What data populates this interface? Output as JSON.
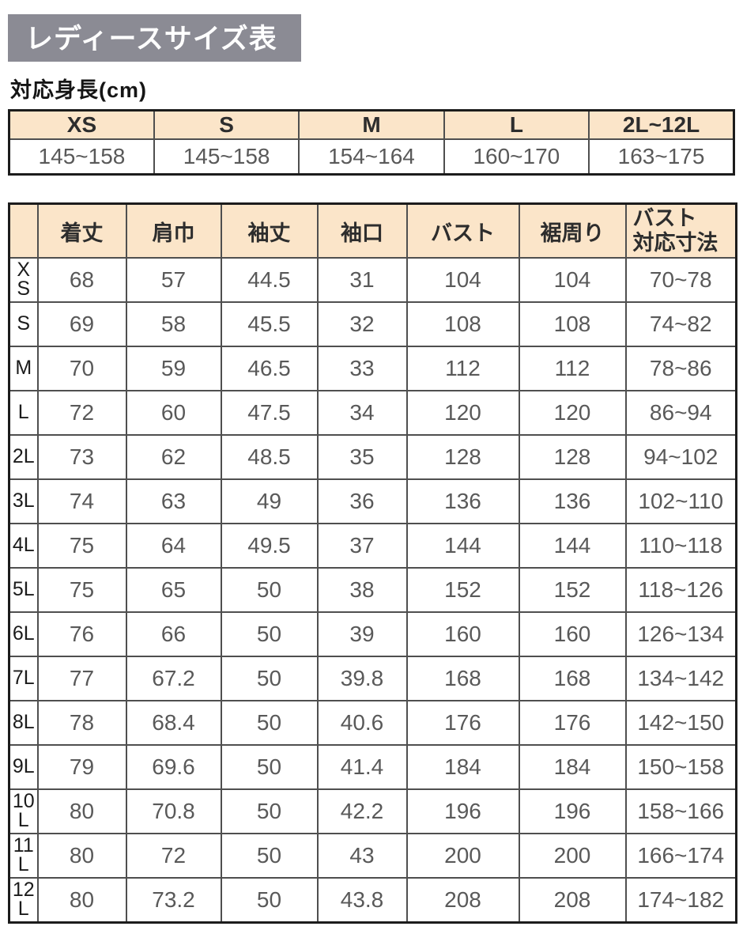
{
  "page": {
    "title": "レディースサイズ表",
    "subtitle": "対応身長(cm)"
  },
  "colors": {
    "title_bg": "#8b8b94",
    "title_text": "#ffffff",
    "header_bg": "#fbe5c9",
    "border_outer": "#1c1c1c",
    "border_inner": "#4f4f4f",
    "header_text": "#2d2d2d",
    "value_text": "#595959"
  },
  "height_table": {
    "columns": [
      "XS",
      "S",
      "M",
      "L",
      "2L~12L"
    ],
    "values": [
      "145~158",
      "145~158",
      "154~164",
      "160~170",
      "163~175"
    ]
  },
  "size_table": {
    "headers": [
      "着丈",
      "肩巾",
      "袖丈",
      "袖口",
      "バスト",
      "裾周り",
      "バスト\n対応寸法"
    ],
    "rows": [
      {
        "size": "XS",
        "values": [
          "68",
          "57",
          "44.5",
          "31",
          "104",
          "104",
          "70~78"
        ]
      },
      {
        "size": "S",
        "values": [
          "69",
          "58",
          "45.5",
          "32",
          "108",
          "108",
          "74~82"
        ]
      },
      {
        "size": "M",
        "values": [
          "70",
          "59",
          "46.5",
          "33",
          "112",
          "112",
          "78~86"
        ]
      },
      {
        "size": "L",
        "values": [
          "72",
          "60",
          "47.5",
          "34",
          "120",
          "120",
          "86~94"
        ]
      },
      {
        "size": "2L",
        "values": [
          "73",
          "62",
          "48.5",
          "35",
          "128",
          "128",
          "94~102"
        ]
      },
      {
        "size": "3L",
        "values": [
          "74",
          "63",
          "49",
          "36",
          "136",
          "136",
          "102~110"
        ]
      },
      {
        "size": "4L",
        "values": [
          "75",
          "64",
          "49.5",
          "37",
          "144",
          "144",
          "110~118"
        ]
      },
      {
        "size": "5L",
        "values": [
          "75",
          "65",
          "50",
          "38",
          "152",
          "152",
          "118~126"
        ]
      },
      {
        "size": "6L",
        "values": [
          "76",
          "66",
          "50",
          "39",
          "160",
          "160",
          "126~134"
        ]
      },
      {
        "size": "7L",
        "values": [
          "77",
          "67.2",
          "50",
          "39.8",
          "168",
          "168",
          "134~142"
        ]
      },
      {
        "size": "8L",
        "values": [
          "78",
          "68.4",
          "50",
          "40.6",
          "176",
          "176",
          "142~150"
        ]
      },
      {
        "size": "9L",
        "values": [
          "79",
          "69.6",
          "50",
          "41.4",
          "184",
          "184",
          "150~158"
        ]
      },
      {
        "size": "10L",
        "values": [
          "80",
          "70.8",
          "50",
          "42.2",
          "196",
          "196",
          "158~166"
        ]
      },
      {
        "size": "11L",
        "values": [
          "80",
          "72",
          "50",
          "43",
          "200",
          "200",
          "166~174"
        ]
      },
      {
        "size": "12L",
        "values": [
          "80",
          "73.2",
          "50",
          "43.8",
          "208",
          "208",
          "174~182"
        ]
      }
    ]
  }
}
